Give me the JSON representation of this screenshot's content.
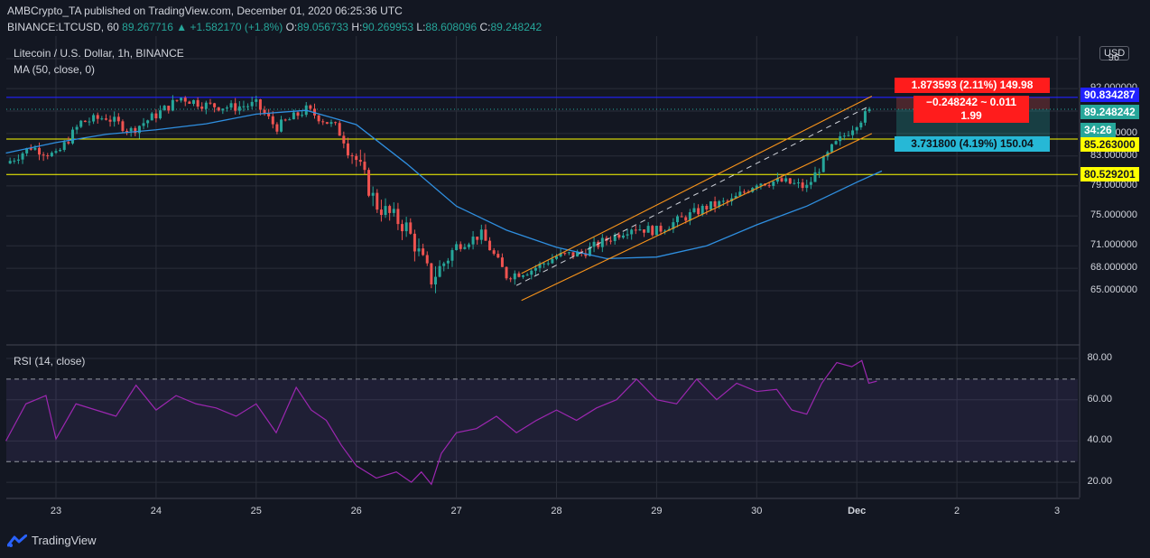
{
  "header": {
    "publisher": "AMBCrypto_TA",
    "published_text": "published on TradingView.com, December 01, 2020 06:25:36 UTC",
    "symbol_line": "BINANCE:LTCUSD, 60",
    "last": "89.267716",
    "change": "+1.582170 (+1.8%)",
    "o_label": "O:",
    "o_value": "89.056733",
    "h_label": "H:",
    "h_value": "90.269953",
    "l_label": "L:",
    "l_value": "88.608096",
    "c_label": "C:",
    "c_value": "89.248242"
  },
  "chart_title": "Litecoin / U.S. Dollar, 1h, BINANCE",
  "ma_legend": "MA (50, close, 0)",
  "rsi_legend": "RSI (14, close)",
  "currency": "USD",
  "footer_brand": "TradingView",
  "measure": {
    "top": "1.873593 (2.11%) 149.98",
    "middle_line1": "−0.248242 ~ 0.011",
    "middle_line2": "1.99",
    "bottom": "3.731800 (4.19%) 150.04"
  },
  "price_tags": {
    "blue": "90.834287",
    "current": "89.248242",
    "countdown": "34:26",
    "yellow_upper": "85.263000",
    "yellow_lower": "80.529201"
  },
  "colors": {
    "background": "#131722",
    "up": "#26a69a",
    "down": "#ef5350",
    "ma": "#2f8fe0",
    "channel": "#f7931a",
    "rsi": "#9c27b0",
    "blue_line": "#2121ff",
    "yellow_line": "#ffff00"
  },
  "chart_data": [
    {
      "type": "candlestick",
      "title": "Litecoin / U.S. Dollar, 1h, BINANCE",
      "x_ticks": [
        "23",
        "24",
        "25",
        "26",
        "27",
        "28",
        "29",
        "30",
        "Dec",
        "2",
        "3"
      ],
      "y_ticks": [
        "96",
        "92.000000",
        "89.000000",
        "86.000000",
        "83.000000",
        "79.000000",
        "75.000000",
        "71.000000",
        "68.000000",
        "65.000000"
      ],
      "ylim": [
        61.5,
        96.5
      ],
      "horizontal_levels": [
        90.834287,
        85.263,
        80.529201
      ],
      "series_anchors": [
        {
          "x": 22.5,
          "close": 82.0
        },
        {
          "x": 22.75,
          "close": 84.2
        },
        {
          "x": 23.0,
          "close": 83.0
        },
        {
          "x": 23.25,
          "close": 87.5
        },
        {
          "x": 23.5,
          "close": 88.2
        },
        {
          "x": 23.75,
          "close": 86.4
        },
        {
          "x": 24.0,
          "close": 88.5
        },
        {
          "x": 24.25,
          "close": 90.8
        },
        {
          "x": 24.5,
          "close": 89.8
        },
        {
          "x": 24.75,
          "close": 89.5
        },
        {
          "x": 25.0,
          "close": 89.9
        },
        {
          "x": 25.2,
          "close": 86.8
        },
        {
          "x": 25.5,
          "close": 89.2
        },
        {
          "x": 25.8,
          "close": 86.8
        },
        {
          "x": 26.0,
          "close": 82.5
        },
        {
          "x": 26.2,
          "close": 76.5
        },
        {
          "x": 26.5,
          "close": 73.5
        },
        {
          "x": 26.75,
          "close": 66.5
        },
        {
          "x": 27.0,
          "close": 71.0
        },
        {
          "x": 27.25,
          "close": 72.5
        },
        {
          "x": 27.5,
          "close": 67.0
        },
        {
          "x": 27.75,
          "close": 67.8
        },
        {
          "x": 28.0,
          "close": 69.6
        },
        {
          "x": 28.25,
          "close": 70.0
        },
        {
          "x": 28.5,
          "close": 71.8
        },
        {
          "x": 28.75,
          "close": 73.5
        },
        {
          "x": 29.0,
          "close": 73.0
        },
        {
          "x": 29.25,
          "close": 74.6
        },
        {
          "x": 29.5,
          "close": 76.2
        },
        {
          "x": 29.75,
          "close": 77.0
        },
        {
          "x": 30.0,
          "close": 79.5
        },
        {
          "x": 30.25,
          "close": 79.6
        },
        {
          "x": 30.5,
          "close": 78.8
        },
        {
          "x": 30.75,
          "close": 84.0
        },
        {
          "x": 31.0,
          "close": 87.5
        },
        {
          "x": 31.15,
          "close": 89.2
        }
      ],
      "ma": {
        "name": "MA (50, close, 0)",
        "values": [
          {
            "x": 22.5,
            "y": 83.4
          },
          {
            "x": 23.0,
            "y": 84.8
          },
          {
            "x": 23.5,
            "y": 85.9
          },
          {
            "x": 24.0,
            "y": 86.5
          },
          {
            "x": 24.5,
            "y": 87.3
          },
          {
            "x": 25.0,
            "y": 88.6
          },
          {
            "x": 25.5,
            "y": 89.1
          },
          {
            "x": 26.0,
            "y": 87.2
          },
          {
            "x": 26.5,
            "y": 82.0
          },
          {
            "x": 27.0,
            "y": 76.3
          },
          {
            "x": 27.5,
            "y": 73.1
          },
          {
            "x": 28.0,
            "y": 70.8
          },
          {
            "x": 28.5,
            "y": 69.3
          },
          {
            "x": 29.0,
            "y": 69.5
          },
          {
            "x": 29.5,
            "y": 71.0
          },
          {
            "x": 30.0,
            "y": 73.8
          },
          {
            "x": 30.5,
            "y": 76.3
          },
          {
            "x": 31.0,
            "y": 79.5
          },
          {
            "x": 31.25,
            "y": 81.0
          }
        ]
      },
      "channel": {
        "upper": [
          {
            "x": 27.65,
            "y": 67.3
          },
          {
            "x": 31.15,
            "y": 91.0
          }
        ],
        "middle": [
          {
            "x": 27.6,
            "y": 65.7
          },
          {
            "x": 31.1,
            "y": 89.5
          }
        ],
        "lower": [
          {
            "x": 27.65,
            "y": 63.7
          },
          {
            "x": 31.15,
            "y": 86.0
          }
        ]
      }
    },
    {
      "type": "line",
      "title": "RSI (14, close)",
      "y_ticks": [
        "80.00",
        "60.00",
        "40.00",
        "20.00"
      ],
      "ylim": [
        12,
        88
      ],
      "band": [
        30,
        70
      ],
      "values": [
        {
          "x": 22.5,
          "y": 40
        },
        {
          "x": 22.7,
          "y": 58
        },
        {
          "x": 22.9,
          "y": 62
        },
        {
          "x": 23.0,
          "y": 41
        },
        {
          "x": 23.2,
          "y": 58
        },
        {
          "x": 23.4,
          "y": 55
        },
        {
          "x": 23.6,
          "y": 52
        },
        {
          "x": 23.8,
          "y": 67
        },
        {
          "x": 24.0,
          "y": 55
        },
        {
          "x": 24.2,
          "y": 62
        },
        {
          "x": 24.4,
          "y": 58
        },
        {
          "x": 24.6,
          "y": 56
        },
        {
          "x": 24.8,
          "y": 52
        },
        {
          "x": 25.0,
          "y": 58
        },
        {
          "x": 25.2,
          "y": 44
        },
        {
          "x": 25.4,
          "y": 66
        },
        {
          "x": 25.55,
          "y": 55
        },
        {
          "x": 25.7,
          "y": 50
        },
        {
          "x": 25.85,
          "y": 38
        },
        {
          "x": 26.0,
          "y": 28
        },
        {
          "x": 26.2,
          "y": 22
        },
        {
          "x": 26.4,
          "y": 25
        },
        {
          "x": 26.55,
          "y": 20
        },
        {
          "x": 26.65,
          "y": 25
        },
        {
          "x": 26.75,
          "y": 19
        },
        {
          "x": 26.85,
          "y": 34
        },
        {
          "x": 27.0,
          "y": 44
        },
        {
          "x": 27.2,
          "y": 46
        },
        {
          "x": 27.4,
          "y": 52
        },
        {
          "x": 27.6,
          "y": 44
        },
        {
          "x": 27.8,
          "y": 50
        },
        {
          "x": 28.0,
          "y": 55
        },
        {
          "x": 28.2,
          "y": 50
        },
        {
          "x": 28.4,
          "y": 56
        },
        {
          "x": 28.6,
          "y": 60
        },
        {
          "x": 28.8,
          "y": 70
        },
        {
          "x": 29.0,
          "y": 60
        },
        {
          "x": 29.2,
          "y": 58
        },
        {
          "x": 29.4,
          "y": 70
        },
        {
          "x": 29.6,
          "y": 60
        },
        {
          "x": 29.8,
          "y": 68
        },
        {
          "x": 30.0,
          "y": 64
        },
        {
          "x": 30.2,
          "y": 65
        },
        {
          "x": 30.35,
          "y": 55
        },
        {
          "x": 30.5,
          "y": 53
        },
        {
          "x": 30.65,
          "y": 68
        },
        {
          "x": 30.8,
          "y": 78
        },
        {
          "x": 30.95,
          "y": 76
        },
        {
          "x": 31.05,
          "y": 79
        },
        {
          "x": 31.12,
          "y": 68
        },
        {
          "x": 31.2,
          "y": 69
        }
      ]
    }
  ]
}
